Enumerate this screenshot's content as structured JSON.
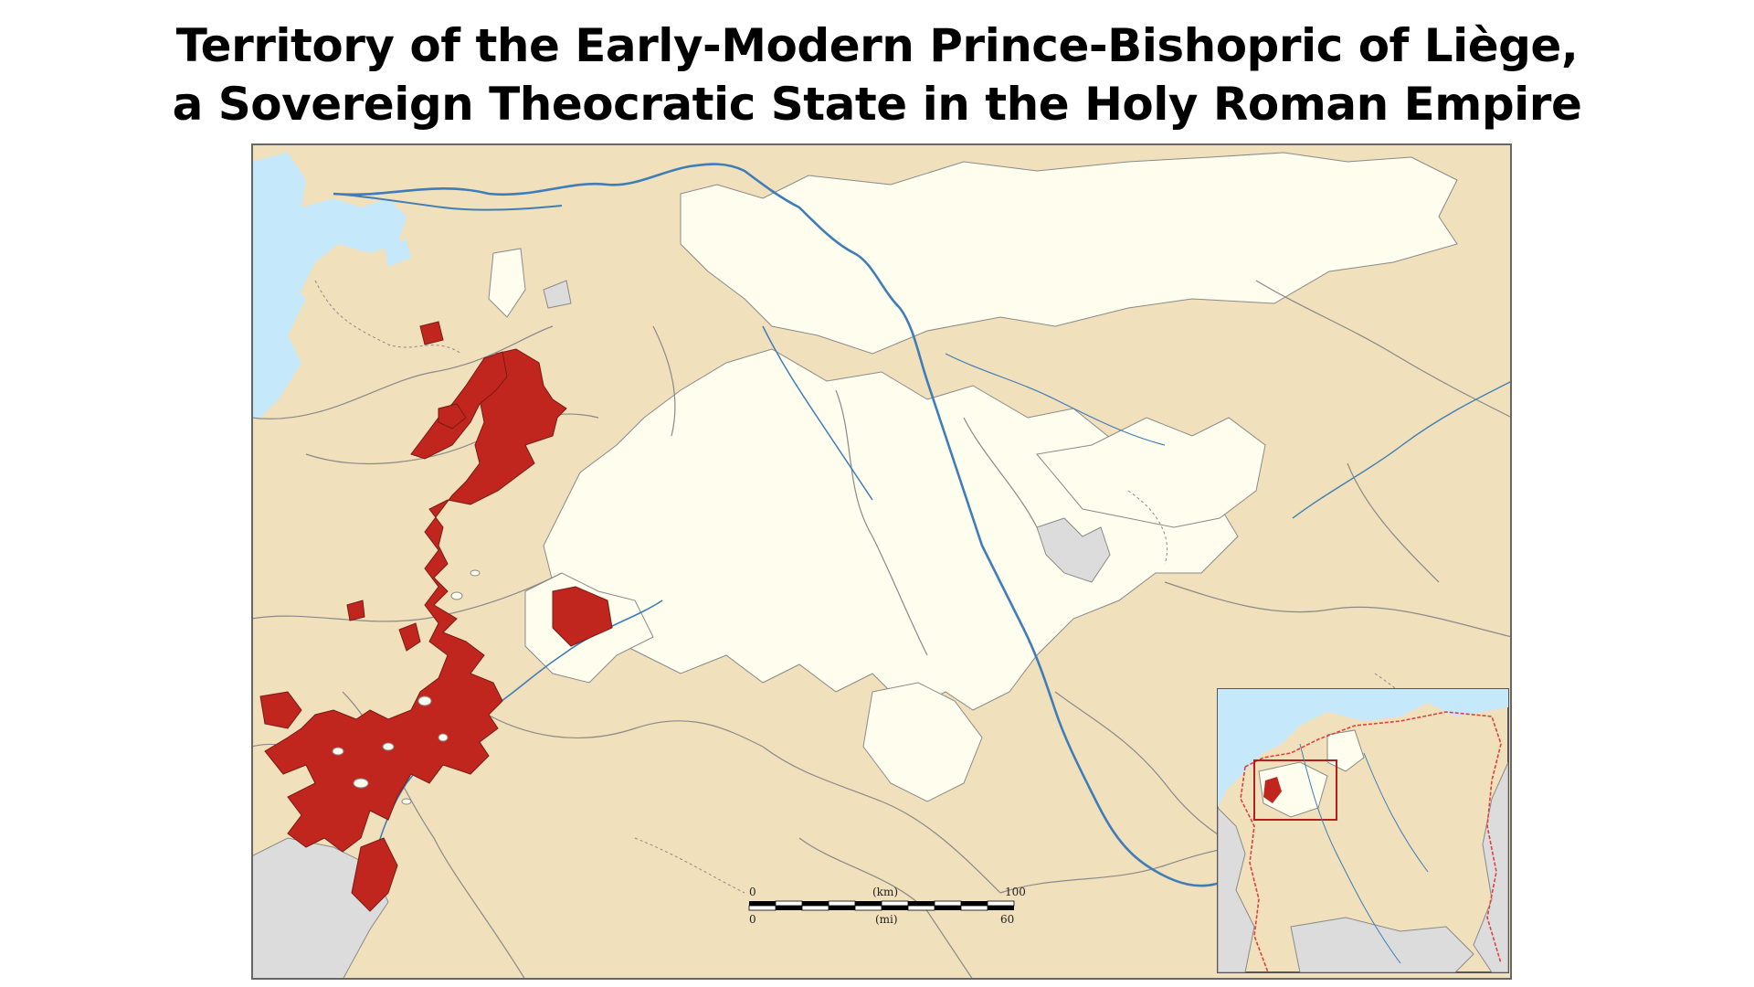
{
  "title": {
    "line1": "Territory of the Early-Modern Prince-Bishopric of Liège,",
    "line2": "a Sovereign Theocratic State in the Holy Roman Empire"
  },
  "colors": {
    "territory": "#c0261d",
    "surrounding_land": "#f0e0bb",
    "other_states": "#fffdee",
    "neutral": "#dcdcdc",
    "water": "#c6e8fb",
    "river": "#3f7db8",
    "border": "#8a8a8a",
    "inset_frame": "#b3201c",
    "empire_boundary": "#e04040"
  },
  "scale_bar": {
    "km_label": "(km)",
    "mi_label": "(mi)",
    "km_start": "0",
    "km_end": "100",
    "mi_start": "0",
    "mi_end": "60"
  }
}
